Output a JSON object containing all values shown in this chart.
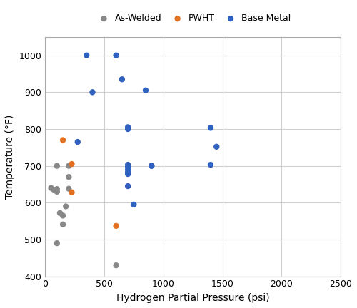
{
  "xlabel": "Hydrogen Partial Pressure (psi)",
  "ylabel": "Temperature (°F)",
  "xlim": [
    0,
    2500
  ],
  "ylim": [
    400,
    1050
  ],
  "xticks": [
    0,
    500,
    1000,
    1500,
    2000,
    2500
  ],
  "yticks": [
    400,
    500,
    600,
    700,
    800,
    900,
    1000
  ],
  "legend_labels": [
    "As-Welded",
    "PWHT",
    "Base Metal"
  ],
  "series": {
    "As-Welded": {
      "color": "#888888",
      "marker": "o",
      "markersize": 6,
      "x": [
        50,
        75,
        100,
        100,
        100,
        125,
        150,
        150,
        175,
        200,
        200,
        200,
        100,
        600
      ],
      "y": [
        640,
        635,
        700,
        637,
        630,
        572,
        565,
        541,
        590,
        638,
        670,
        700,
        490,
        430
      ]
    },
    "PWHT": {
      "color": "#E07020",
      "marker": "o",
      "markersize": 6,
      "x": [
        150,
        225,
        225,
        600
      ],
      "y": [
        770,
        705,
        628,
        537
      ]
    },
    "Base Metal": {
      "color": "#3060C0",
      "marker": "o",
      "markersize": 6,
      "x": [
        350,
        400,
        275,
        600,
        650,
        700,
        700,
        700,
        700,
        700,
        700,
        700,
        700,
        750,
        850,
        900,
        900,
        1400,
        1400,
        1450
      ],
      "y": [
        1000,
        900,
        765,
        1000,
        935,
        805,
        800,
        703,
        697,
        690,
        683,
        678,
        645,
        595,
        905,
        700,
        700,
        803,
        703,
        752
      ]
    }
  },
  "background_color": "#ffffff",
  "grid_color": "#d0d0d0",
  "label_fontsize": 10,
  "tick_fontsize": 9,
  "legend_fontsize": 9
}
